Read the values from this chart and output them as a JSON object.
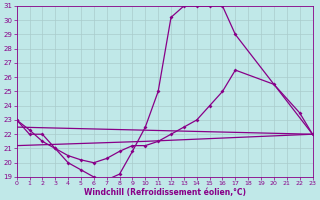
{
  "xlabel": "Windchill (Refroidissement éolien,°C)",
  "background_color": "#c0e8e8",
  "grid_color": "#aacccc",
  "line_color": "#880088",
  "xlim": [
    0,
    23
  ],
  "ylim": [
    19,
    31
  ],
  "yticks": [
    19,
    20,
    21,
    22,
    23,
    24,
    25,
    26,
    27,
    28,
    29,
    30,
    31
  ],
  "xticks": [
    0,
    1,
    2,
    3,
    4,
    5,
    6,
    7,
    8,
    9,
    10,
    11,
    12,
    13,
    14,
    15,
    16,
    17,
    18,
    19,
    20,
    21,
    22,
    23
  ],
  "curve1_x": [
    0,
    1,
    2,
    3,
    4,
    5,
    6,
    7,
    8,
    9,
    10,
    11,
    12,
    13,
    14,
    15,
    16,
    17,
    23
  ],
  "curve1_y": [
    23,
    22,
    22,
    21,
    20,
    19.5,
    19,
    18.8,
    19.2,
    20.8,
    22.5,
    25,
    30.2,
    31,
    31,
    31,
    31,
    29,
    22
  ],
  "curve2_x": [
    0,
    1,
    2,
    3,
    4,
    5,
    6,
    7,
    8,
    9,
    10,
    11,
    12,
    13,
    14,
    15,
    16,
    17,
    20,
    22,
    23
  ],
  "curve2_y": [
    23,
    22.3,
    21.5,
    21,
    20.5,
    20.2,
    20,
    20.3,
    20.8,
    21.2,
    21.2,
    21.5,
    22,
    22.5,
    23,
    24,
    25,
    26.5,
    25.5,
    23.5,
    22
  ],
  "curve3_x": [
    0,
    23
  ],
  "curve3_y": [
    22.5,
    22
  ],
  "curve4_x": [
    0,
    10,
    23
  ],
  "curve4_y": [
    21.2,
    21.5,
    22
  ]
}
